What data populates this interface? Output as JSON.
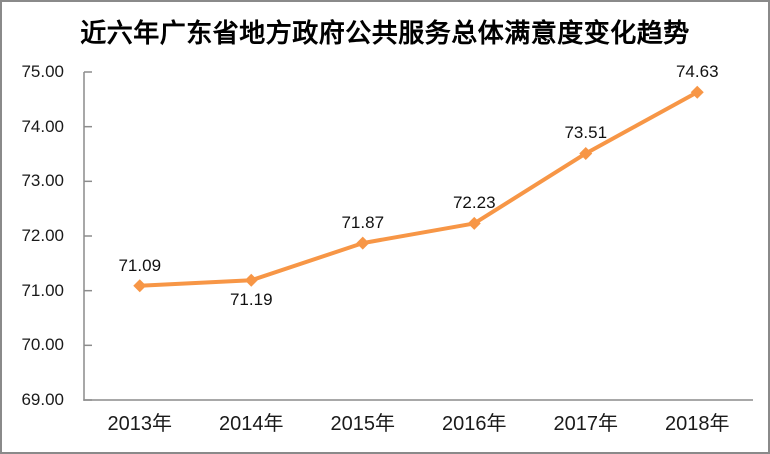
{
  "chart_data": {
    "type": "line",
    "title": "近六年广东省地方政府公共服务总体满意度变化趋势",
    "categories": [
      "2013年",
      "2014年",
      "2015年",
      "2016年",
      "2017年",
      "2018年"
    ],
    "values": [
      71.09,
      71.19,
      71.87,
      72.23,
      73.51,
      74.63
    ],
    "data_labels": [
      "71.09",
      "71.19",
      "71.87",
      "72.23",
      "73.51",
      "74.63"
    ],
    "data_label_positions": [
      "above",
      "below",
      "above",
      "above",
      "above",
      "above"
    ],
    "y_tick_labels": [
      "75.00",
      "74.00",
      "73.00",
      "72.00",
      "71.00",
      "70.00",
      "69.00"
    ],
    "y_tick_values": [
      75,
      74,
      73,
      72,
      71,
      70,
      69
    ],
    "ylim": [
      69,
      75
    ],
    "xlabel": "",
    "ylabel": "",
    "grid": false,
    "legend": false,
    "marker": "diamond",
    "line_color": "#F79646",
    "axis_color": "#8c8c8c",
    "text_color": "#1a1a1a",
    "frame_border_color": "#8a8a8a",
    "background": "#ffffff"
  }
}
